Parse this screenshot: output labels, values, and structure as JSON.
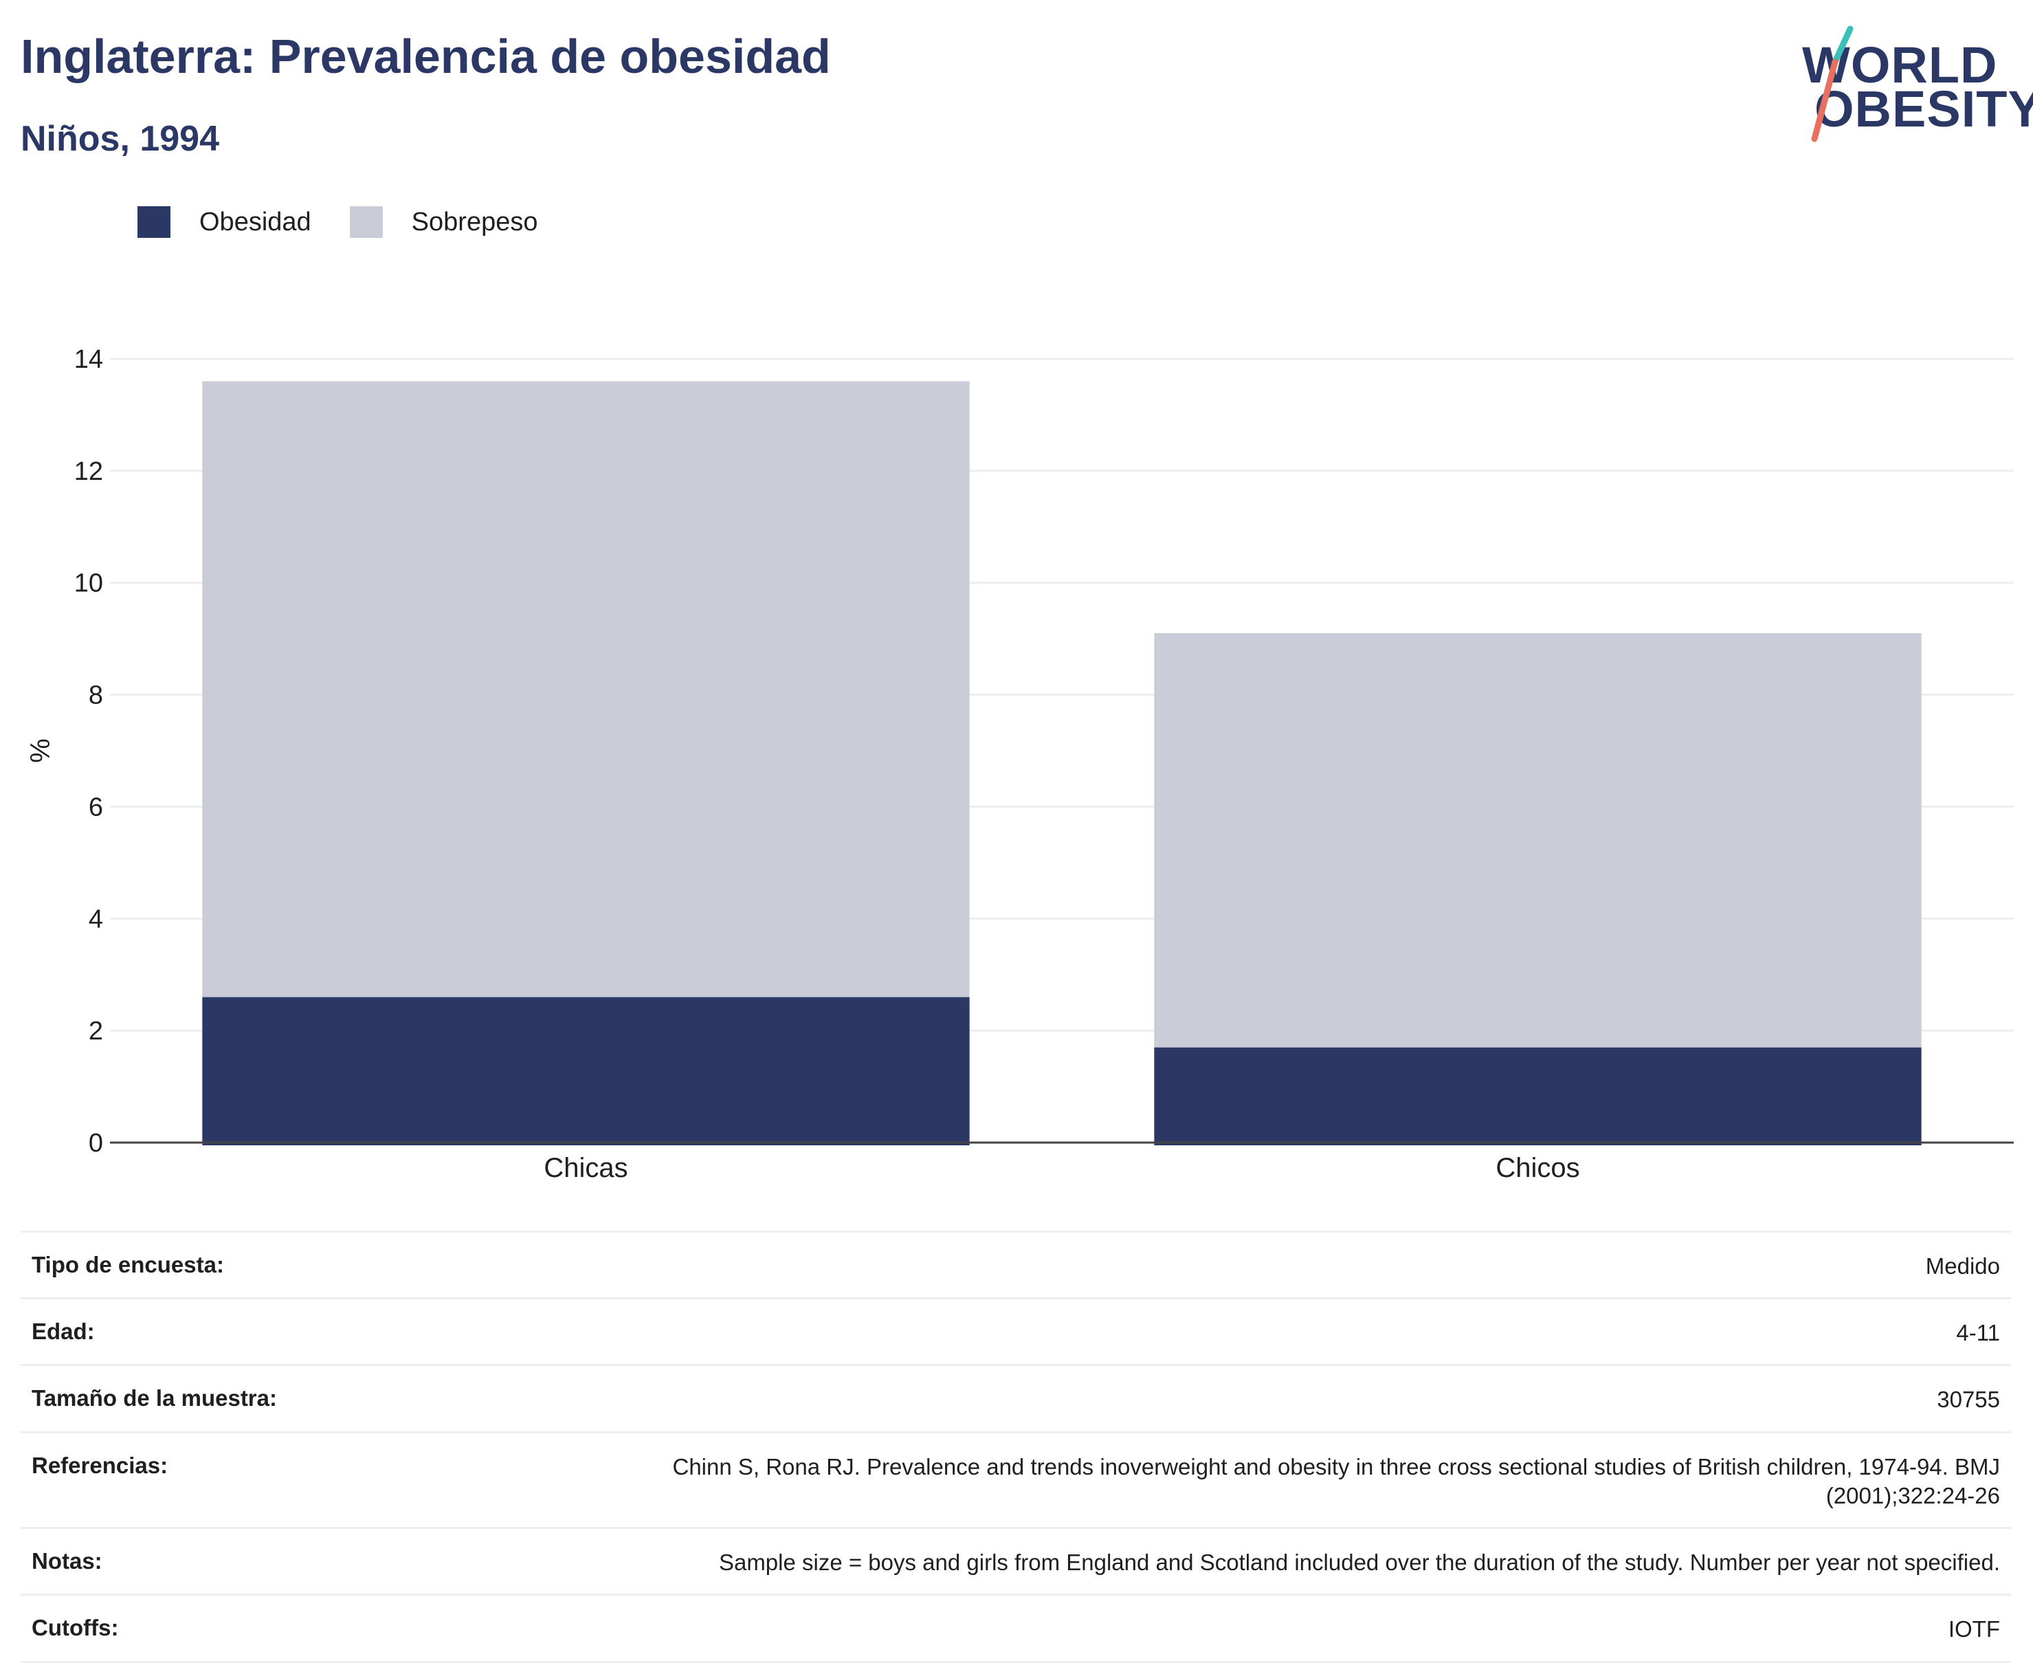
{
  "header": {
    "title": "Inglaterra: Prevalencia de obesidad",
    "subtitle": "Niños, 1994",
    "logo_line1": "WORLD",
    "logo_line2": "OBESITY"
  },
  "colors": {
    "obesidad": "#2b3764",
    "sobrepeso": "#cacdd8",
    "title": "#2b3764",
    "logo_teal": "#3bbfb8",
    "logo_coral": "#e8705f"
  },
  "chart_data": {
    "type": "bar",
    "stacked": true,
    "categories": [
      "Chicas",
      "Chicos"
    ],
    "series": [
      {
        "name": "Obesidad",
        "values": [
          2.6,
          1.7
        ]
      },
      {
        "name": "Sobrepeso",
        "values": [
          11.0,
          7.4
        ]
      }
    ],
    "title": "Inglaterra: Prevalencia de obesidad",
    "subtitle": "Niños, 1994",
    "xlabel": "",
    "ylabel": "%",
    "ylim": [
      0,
      14
    ],
    "yticks": [
      0,
      2,
      4,
      6,
      8,
      10,
      12,
      14
    ],
    "grid": true,
    "legend": "top-left"
  },
  "details": [
    {
      "label": "Tipo de encuesta:",
      "value": "Medido"
    },
    {
      "label": "Edad:",
      "value": "4-11"
    },
    {
      "label": "Tamaño de la muestra:",
      "value": "30755"
    },
    {
      "label": "Referencias:",
      "value": "Chinn S, Rona RJ. Prevalence and trends inoverweight and obesity in three cross sectional studies of British children, 1974-94. BMJ (2001);322:24-26"
    },
    {
      "label": "Notas:",
      "value": "Sample size = boys and girls from England and Scotland included over the duration of the study. Number per year not specified."
    },
    {
      "label": "Cutoffs:",
      "value": "IOTF"
    }
  ]
}
